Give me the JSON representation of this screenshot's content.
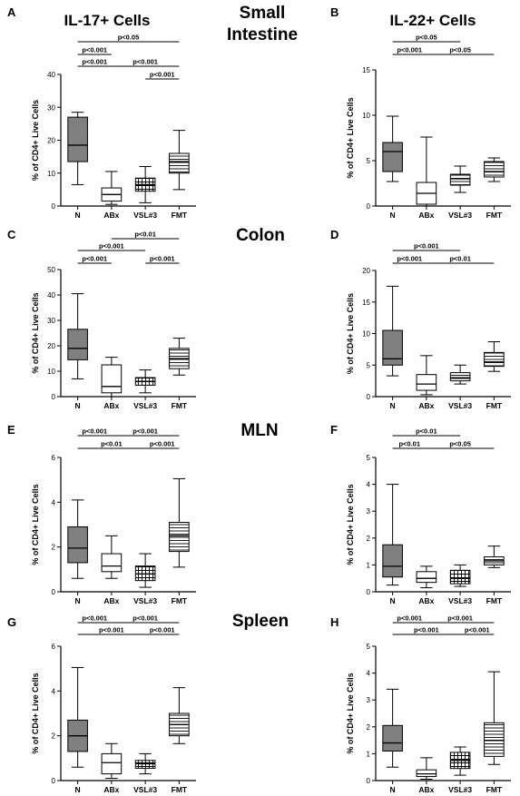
{
  "section_titles": {
    "small_intestine": [
      "Small",
      "Intestine"
    ],
    "colon": "Colon",
    "mln": "MLN",
    "spleen": "Spleen"
  },
  "column_titles": {
    "il17": "IL-17+ Cells",
    "il22": "IL-22+ Cells"
  },
  "colors": {
    "gray_fill": "#808080",
    "line": "#000000"
  },
  "chart_data": [
    {
      "type": "box",
      "panel": "A",
      "column_title": "IL-17+ Cells",
      "ylabel": "% of CD4+ Live Cells",
      "ylim": [
        0,
        40
      ],
      "yticks": [
        0,
        10,
        20,
        30,
        40
      ],
      "categories": [
        "N",
        "ABx",
        "VSL#3",
        "FMT"
      ],
      "boxes": [
        {
          "whisker_low": 6.5,
          "q1": 13.5,
          "median": 18.5,
          "q3": 27,
          "whisker_high": 28.5,
          "fill": "gray"
        },
        {
          "whisker_low": 0.5,
          "q1": 1.5,
          "median": 3.5,
          "q3": 5.5,
          "whisker_high": 10.5,
          "fill": "white"
        },
        {
          "whisker_low": 1,
          "q1": 4.5,
          "median": 6.5,
          "q3": 8.5,
          "whisker_high": 12,
          "fill": "grid"
        },
        {
          "whisker_low": 5,
          "q1": 10,
          "median": 13.5,
          "q3": 16,
          "whisker_high": 23,
          "fill": "hlines"
        }
      ],
      "significance": [
        {
          "from": 0,
          "to": 3,
          "label": "p<0.05",
          "level": 0
        },
        {
          "from": 0,
          "to": 1,
          "label": "p<0.001",
          "level": 1
        },
        {
          "from": 0,
          "to": 1,
          "label": "p<0.001",
          "level": 2
        },
        {
          "from": 1,
          "to": 3,
          "label": "p<0.001",
          "level": 2
        },
        {
          "from": 2,
          "to": 3,
          "label": "p<0.001",
          "level": 3
        }
      ]
    },
    {
      "type": "box",
      "panel": "B",
      "column_title": "IL-22+ Cells",
      "ylabel": "% of CD4+ Live Cells",
      "ylim": [
        0,
        15
      ],
      "yticks": [
        0,
        5,
        10,
        15
      ],
      "categories": [
        "N",
        "ABx",
        "VSL#3",
        "FMT"
      ],
      "boxes": [
        {
          "whisker_low": 2.7,
          "q1": 3.8,
          "median": 6,
          "q3": 7,
          "whisker_high": 9.9,
          "fill": "gray"
        },
        {
          "whisker_low": 0,
          "q1": 0.2,
          "median": 1.4,
          "q3": 2.6,
          "whisker_high": 7.6,
          "fill": "white"
        },
        {
          "whisker_low": 1.5,
          "q1": 2.3,
          "median": 3,
          "q3": 3.5,
          "whisker_high": 4.4,
          "fill": "hlines"
        },
        {
          "whisker_low": 2.7,
          "q1": 3.2,
          "median": 3.8,
          "q3": 4.9,
          "whisker_high": 5.3,
          "fill": "hlines"
        }
      ],
      "significance": [
        {
          "from": 0,
          "to": 2,
          "label": "p<0.05",
          "level": 0
        },
        {
          "from": 0,
          "to": 1,
          "label": "p<0.001",
          "level": 1
        },
        {
          "from": 1,
          "to": 3,
          "label": "p<0.05",
          "level": 1
        }
      ]
    },
    {
      "type": "box",
      "panel": "C",
      "ylabel": "% of CD4+ Live Cells",
      "ylim": [
        0,
        50
      ],
      "yticks": [
        0,
        10,
        20,
        30,
        40,
        50
      ],
      "categories": [
        "N",
        "ABx",
        "VSL#3",
        "FMT"
      ],
      "boxes": [
        {
          "whisker_low": 7,
          "q1": 14.5,
          "median": 19,
          "q3": 26.5,
          "whisker_high": 40.5,
          "fill": "gray"
        },
        {
          "whisker_low": 0,
          "q1": 1.5,
          "median": 4,
          "q3": 12.5,
          "whisker_high": 15.5,
          "fill": "white"
        },
        {
          "whisker_low": 1.5,
          "q1": 4.5,
          "median": 6,
          "q3": 7.5,
          "whisker_high": 10.5,
          "fill": "grid"
        },
        {
          "whisker_low": 8.5,
          "q1": 11,
          "median": 15,
          "q3": 19,
          "whisker_high": 23,
          "fill": "hlines"
        }
      ],
      "significance": [
        {
          "from": 1,
          "to": 3,
          "label": "p<0.01",
          "level": 0
        },
        {
          "from": 0,
          "to": 2,
          "label": "p<0.001",
          "level": 1
        },
        {
          "from": 0,
          "to": 1,
          "label": "p<0.001",
          "level": 2
        },
        {
          "from": 2,
          "to": 3,
          "label": "p<0.001",
          "level": 2
        }
      ]
    },
    {
      "type": "box",
      "panel": "D",
      "ylabel": "% of CD4+ Live Cells",
      "ylim": [
        0,
        20
      ],
      "yticks": [
        0,
        5,
        10,
        15,
        20
      ],
      "categories": [
        "N",
        "ABx",
        "VSL#3",
        "FMT"
      ],
      "boxes": [
        {
          "whisker_low": 3.3,
          "q1": 5,
          "median": 6,
          "q3": 10.5,
          "whisker_high": 17.5,
          "fill": "gray"
        },
        {
          "whisker_low": 0.3,
          "q1": 1,
          "median": 2,
          "q3": 3.5,
          "whisker_high": 6.5,
          "fill": "white"
        },
        {
          "whisker_low": 2,
          "q1": 2.5,
          "median": 3,
          "q3": 3.8,
          "whisker_high": 5,
          "fill": "hlines"
        },
        {
          "whisker_low": 4,
          "q1": 4.8,
          "median": 5.5,
          "q3": 7,
          "whisker_high": 8.7,
          "fill": "hlines"
        }
      ],
      "significance": [
        {
          "from": 0,
          "to": 2,
          "label": "p<0.001",
          "level": 1
        },
        {
          "from": 0,
          "to": 1,
          "label": "p<0.001",
          "level": 2
        },
        {
          "from": 1,
          "to": 3,
          "label": "p<0.01",
          "level": 2
        }
      ]
    },
    {
      "type": "box",
      "panel": "E",
      "ylabel": "% of CD4+ Live Cells",
      "ylim": [
        0,
        6
      ],
      "yticks": [
        0,
        2,
        4,
        6
      ],
      "categories": [
        "N",
        "ABx",
        "VSL#3",
        "FMT"
      ],
      "boxes": [
        {
          "whisker_low": 0.6,
          "q1": 1.3,
          "median": 1.95,
          "q3": 2.9,
          "whisker_high": 4.1,
          "fill": "gray"
        },
        {
          "whisker_low": 0.6,
          "q1": 0.9,
          "median": 1.15,
          "q3": 1.7,
          "whisker_high": 2.5,
          "fill": "white"
        },
        {
          "whisker_low": 0.2,
          "q1": 0.5,
          "median": 0.8,
          "q3": 1.15,
          "whisker_high": 1.7,
          "fill": "grid"
        },
        {
          "whisker_low": 1.1,
          "q1": 1.8,
          "median": 2.5,
          "q3": 3.1,
          "whisker_high": 5.05,
          "fill": "hlines"
        }
      ],
      "significance": [
        {
          "from": 0,
          "to": 1,
          "label": "p<0.001",
          "level": 1
        },
        {
          "from": 1,
          "to": 3,
          "label": "p<0.001",
          "level": 1
        },
        {
          "from": 0,
          "to": 2,
          "label": "p<0.01",
          "level": 2
        },
        {
          "from": 2,
          "to": 3,
          "label": "p<0.001",
          "level": 2
        }
      ]
    },
    {
      "type": "box",
      "panel": "F",
      "ylabel": "% of CD4+ Live Cells",
      "ylim": [
        0,
        5
      ],
      "yticks": [
        0,
        1,
        2,
        3,
        4,
        5
      ],
      "categories": [
        "N",
        "ABx",
        "VSL#3",
        "FMT"
      ],
      "boxes": [
        {
          "whisker_low": 0.25,
          "q1": 0.55,
          "median": 0.95,
          "q3": 1.75,
          "whisker_high": 4,
          "fill": "gray"
        },
        {
          "whisker_low": 0.15,
          "q1": 0.35,
          "median": 0.5,
          "q3": 0.75,
          "whisker_high": 0.95,
          "fill": "white"
        },
        {
          "whisker_low": 0.2,
          "q1": 0.3,
          "median": 0.5,
          "q3": 0.8,
          "whisker_high": 1,
          "fill": "grid"
        },
        {
          "whisker_low": 0.9,
          "q1": 1,
          "median": 1.15,
          "q3": 1.3,
          "whisker_high": 1.7,
          "fill": "hlines"
        }
      ],
      "significance": [
        {
          "from": 0,
          "to": 2,
          "label": "p<0.01",
          "level": 1
        },
        {
          "from": 0,
          "to": 1,
          "label": "p<0.01",
          "level": 2
        },
        {
          "from": 1,
          "to": 3,
          "label": "p<0.05",
          "level": 2
        }
      ]
    },
    {
      "type": "box",
      "panel": "G",
      "ylabel": "% of CD4+ Live Cells",
      "ylim": [
        0,
        6
      ],
      "yticks": [
        0,
        2,
        4,
        6
      ],
      "categories": [
        "N",
        "ABx",
        "VSL#3",
        "FMT"
      ],
      "boxes": [
        {
          "whisker_low": 0.6,
          "q1": 1.3,
          "median": 2,
          "q3": 2.7,
          "whisker_high": 5.05,
          "fill": "gray"
        },
        {
          "whisker_low": 0.1,
          "q1": 0.3,
          "median": 0.8,
          "q3": 1.2,
          "whisker_high": 1.65,
          "fill": "white"
        },
        {
          "whisker_low": 0.3,
          "q1": 0.55,
          "median": 0.75,
          "q3": 0.9,
          "whisker_high": 1.2,
          "fill": "grid"
        },
        {
          "whisker_low": 1.65,
          "q1": 2,
          "median": 2.5,
          "q3": 3,
          "whisker_high": 4.15,
          "fill": "hlines"
        }
      ],
      "significance": [
        {
          "from": 0,
          "to": 1,
          "label": "p<0.001",
          "level": 1
        },
        {
          "from": 1,
          "to": 3,
          "label": "p<0.001",
          "level": 1
        },
        {
          "from": 0,
          "to": 2,
          "label": "p<0.001",
          "level": 2
        },
        {
          "from": 2,
          "to": 3,
          "label": "p<0.001",
          "level": 2
        }
      ]
    },
    {
      "type": "box",
      "panel": "H",
      "ylabel": "% of CD4+ Live Cells",
      "ylim": [
        0,
        5
      ],
      "yticks": [
        0,
        1,
        2,
        3,
        4,
        5
      ],
      "categories": [
        "N",
        "ABx",
        "VSL#3",
        "FMT"
      ],
      "boxes": [
        {
          "whisker_low": 0.5,
          "q1": 1.1,
          "median": 1.4,
          "q3": 2.05,
          "whisker_high": 3.4,
          "fill": "gray"
        },
        {
          "whisker_low": 0.05,
          "q1": 0.15,
          "median": 0.25,
          "q3": 0.4,
          "whisker_high": 0.85,
          "fill": "white"
        },
        {
          "whisker_low": 0.2,
          "q1": 0.45,
          "median": 0.75,
          "q3": 1.05,
          "whisker_high": 1.25,
          "fill": "grid"
        },
        {
          "whisker_low": 0.6,
          "q1": 0.9,
          "median": 1.5,
          "q3": 2.15,
          "whisker_high": 4.05,
          "fill": "hlines"
        }
      ],
      "significance": [
        {
          "from": 0,
          "to": 1,
          "label": "p<0.001",
          "level": 1
        },
        {
          "from": 1,
          "to": 3,
          "label": "p<0.001",
          "level": 1
        },
        {
          "from": 0,
          "to": 2,
          "label": "p<0.001",
          "level": 2
        },
        {
          "from": 2,
          "to": 3,
          "label": "p<0.001",
          "level": 2
        }
      ]
    }
  ]
}
